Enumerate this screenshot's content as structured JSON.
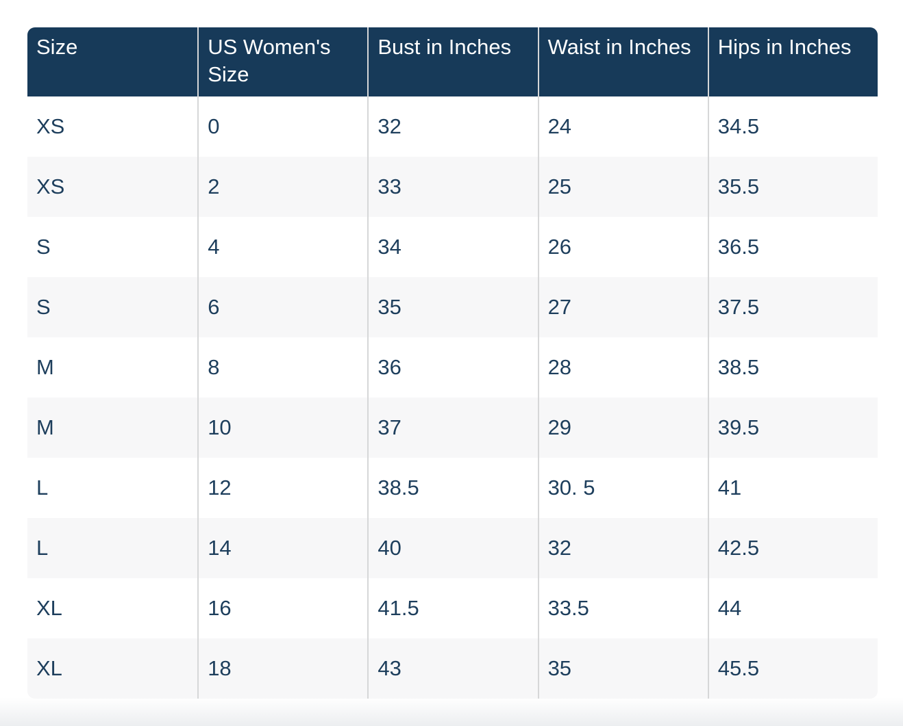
{
  "chart_data": {
    "type": "table",
    "columns": [
      "Size",
      "US Women's Size",
      "Bust in Inches",
      "Waist in Inches",
      "Hips in Inches"
    ],
    "rows": [
      [
        "XS",
        "0",
        "32",
        "24",
        "34.5"
      ],
      [
        "XS",
        "2",
        "33",
        "25",
        "35.5"
      ],
      [
        "S",
        "4",
        "34",
        "26",
        "36.5"
      ],
      [
        "S",
        "6",
        "35",
        "27",
        "37.5"
      ],
      [
        "M",
        "8",
        "36",
        "28",
        "38.5"
      ],
      [
        "M",
        "10",
        "37",
        "29",
        "39.5"
      ],
      [
        "L",
        "12",
        "38.5",
        "30. 5",
        "41"
      ],
      [
        "L",
        "14",
        "40",
        "32",
        "42.5"
      ],
      [
        "XL",
        "16",
        "41.5",
        "33.5",
        "44"
      ],
      [
        "XL",
        "18",
        "43",
        "35",
        "45.5"
      ]
    ],
    "layout_hints": {
      "striped_rows": true,
      "column_dividers": true,
      "rounded_corners": true
    },
    "colors": {
      "header_bg": "#173A59",
      "header_text": "#FFFFFF",
      "cell_text": "#1D3E5C",
      "row_bg": "#FFFFFF",
      "row_alt_bg": "#F7F7F8",
      "divider": "#D6D7D8",
      "page_bg": "#FFFFFF",
      "bottom_fade": "#ECEEF0"
    }
  }
}
